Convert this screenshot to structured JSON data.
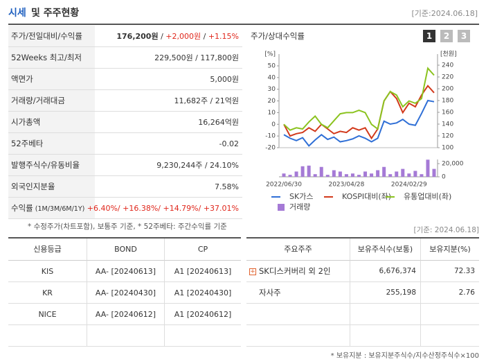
{
  "header": {
    "title_main": "시세",
    "title_rest": "및 주주현황",
    "date": "[기준:2024.06.18]"
  },
  "quote_table": {
    "rows": [
      {
        "label": "주가/전일대비/수익률",
        "value_parts": [
          {
            "text": "176,200원",
            "bold": true
          },
          {
            "text": " / "
          },
          {
            "text": "+2,000원",
            "color": "#e0261b"
          },
          {
            "text": " / "
          },
          {
            "text": "+1.15%",
            "color": "#e0261b"
          }
        ]
      },
      {
        "label": "52Weeks 최고/최저",
        "value": "229,500원 / 117,800원"
      },
      {
        "label": "액면가",
        "value": "5,000원"
      },
      {
        "label": "거래량/거래대금",
        "value": "11,682주 / 21억원"
      },
      {
        "label": "시가총액",
        "value": "16,264억원"
      },
      {
        "label": "52주베타",
        "value": "-0.02"
      },
      {
        "label": "발행주식수/유동비율",
        "value": "9,230,244주 / 24.10%"
      },
      {
        "label": "외국인지분율",
        "value": "7.58%"
      },
      {
        "label": "수익률",
        "label_sub": "(1M/3M/6M/1Y)",
        "value": "+6.40%/ +16.38%/ +14.79%/ +37.01%",
        "color": "#e0261b"
      }
    ],
    "note": "* 수정주가(차트포함), 보통주 기준, * 52주베타: 주간수익률 기준"
  },
  "chart_data": {
    "type": "line",
    "title": "주가/상대수익률",
    "buttons": [
      "1",
      "2",
      "3"
    ],
    "categories": [
      "2022/06/30",
      null,
      null,
      null,
      null,
      null,
      null,
      null,
      null,
      null,
      "2023/04/28",
      null,
      null,
      null,
      null,
      null,
      null,
      null,
      null,
      null,
      "2024/02/29",
      null,
      null,
      null,
      null
    ],
    "ylabel": "[%]",
    "ylim": [
      -20,
      50
    ],
    "yticks": [
      -20,
      -10,
      0,
      10,
      20,
      30,
      40,
      50
    ],
    "y2label": "[천원]",
    "y2lim": [
      100,
      240
    ],
    "y2ticks": [
      100,
      120,
      140,
      160,
      180,
      200,
      220,
      240
    ],
    "vlim": [
      0,
      26000
    ],
    "vticks": [
      0,
      {
        "value": 20000,
        "label": "20,000"
      }
    ],
    "series": [
      {
        "name": "SK가스",
        "color": "#2f6fd6",
        "axis": "y2",
        "values": [
          122,
          116,
          112,
          117,
          103,
          113,
          122,
          114,
          118,
          110,
          112,
          115,
          120,
          116,
          110,
          116,
          145,
          140,
          142,
          148,
          140,
          138,
          158,
          180,
          178
        ]
      },
      {
        "name": "KOSPI대비(좌)",
        "color": "#d2391b",
        "values": [
          0,
          -10,
          -8,
          -7,
          -3,
          -6,
          0,
          -4,
          -8,
          -6,
          -7,
          -3,
          -5,
          -3,
          -12,
          -4,
          20,
          28,
          22,
          10,
          18,
          15,
          25,
          33,
          27
        ]
      },
      {
        "name": "유통업대비(좌)",
        "color": "#8bc31f",
        "values": [
          0,
          -5,
          -3,
          -4,
          2,
          7,
          0,
          -3,
          3,
          9,
          10,
          10,
          12,
          10,
          0,
          -4,
          20,
          28,
          25,
          15,
          20,
          18,
          22,
          48,
          42
        ]
      },
      {
        "name": "거래량",
        "color": "#a57ad6",
        "type": "bar",
        "axis": "volume",
        "values": [
          5000,
          3000,
          8000,
          16000,
          17000,
          4000,
          15000,
          3000,
          10000,
          8000,
          4000,
          5000,
          3000,
          8000,
          5000,
          10000,
          15000,
          4000,
          8000,
          12000,
          5000,
          9000,
          4000,
          26000,
          12000
        ]
      }
    ]
  },
  "credit_table": {
    "headers": [
      "신용등급",
      "BOND",
      "CP"
    ],
    "rows": [
      [
        "KIS",
        "AA- [20240613]",
        "A1 [20240613]"
      ],
      [
        "KR",
        "AA- [20240430]",
        "A1 [20240430]"
      ],
      [
        "NICE",
        "AA- [20240612]",
        "A1 [20240612]"
      ]
    ]
  },
  "holder_section": {
    "date": "[기준: 2024.06.18]",
    "headers": [
      "주요주주",
      "보유주식수(보통)",
      "보유지분(%)"
    ],
    "rows": [
      [
        "SK디스커버리 외 2인",
        "6,676,374",
        "72.33"
      ],
      [
        "자사주",
        "255,198",
        "2.76"
      ]
    ],
    "note": "* 보유지분 : 보유지분주식수/지수산정주식수×100"
  }
}
